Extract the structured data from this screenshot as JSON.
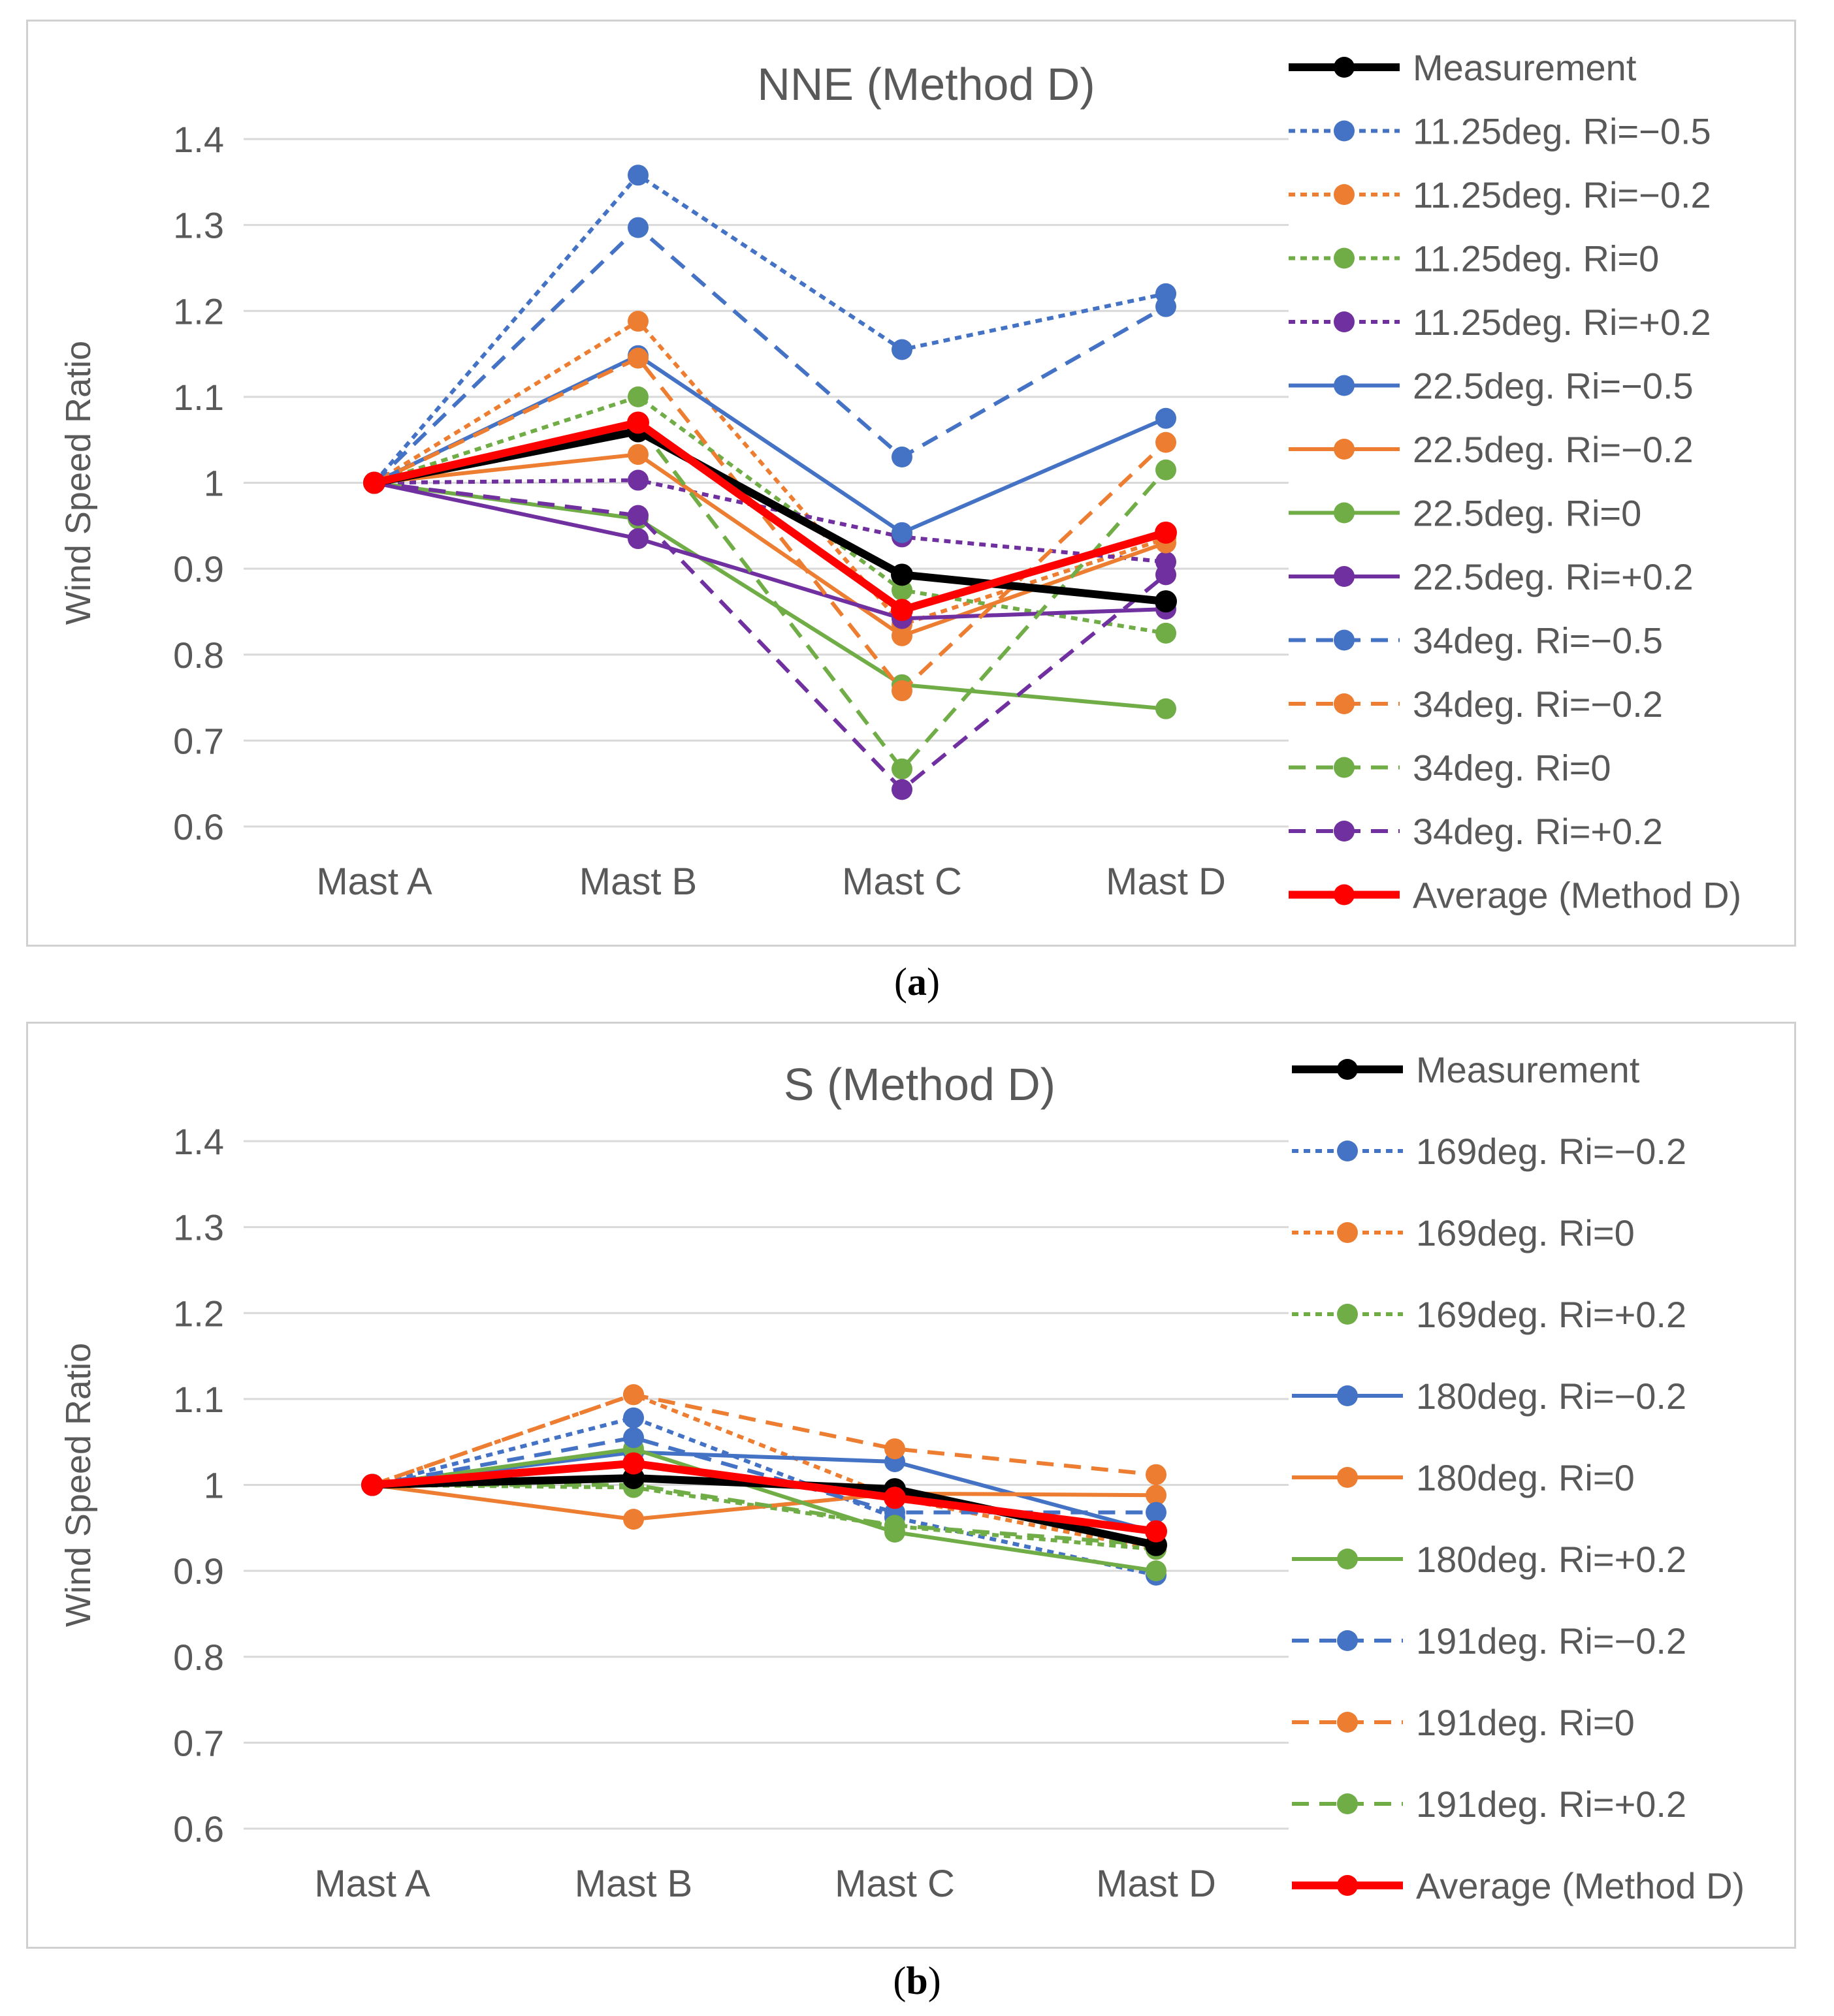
{
  "captions": [
    "a",
    "b"
  ],
  "chart_data": [
    {
      "type": "line",
      "title": "NNE (Method D)",
      "ylabel": "Wind Speed Ratio",
      "xlabel": "",
      "categories": [
        "Mast A",
        "Mast B",
        "Mast C",
        "Mast D"
      ],
      "ylim": [
        0.6,
        1.4
      ],
      "yticks": [
        0.6,
        0.7,
        0.8,
        0.9,
        1,
        1.1,
        1.2,
        1.3,
        1.4
      ],
      "yticklabels": [
        "0.6",
        "0.7",
        "0.8",
        "0.9",
        "1",
        "1.1",
        "1.2",
        "1.3",
        "1.4"
      ],
      "grid": true,
      "legend_position": "right",
      "series": [
        {
          "name": "Measurement",
          "color": "#000000",
          "dash": "solid",
          "bold": true,
          "values": [
            1.0,
            1.06,
            0.893,
            0.862
          ]
        },
        {
          "name": "11.25deg. Ri=−0.5",
          "color": "#4472c4",
          "dash": "dot",
          "bold": false,
          "values": [
            1.0,
            1.358,
            1.155,
            1.22
          ]
        },
        {
          "name": "11.25deg. Ri=−0.2",
          "color": "#ed7d31",
          "dash": "dot",
          "bold": false,
          "values": [
            1.0,
            1.188,
            0.835,
            0.935
          ]
        },
        {
          "name": "11.25deg. Ri=0",
          "color": "#70ad47",
          "dash": "dot",
          "bold": false,
          "values": [
            1.0,
            1.1,
            0.875,
            0.825
          ]
        },
        {
          "name": "11.25deg. Ri=+0.2",
          "color": "#7030a0",
          "dash": "dot",
          "bold": false,
          "values": [
            1.0,
            1.003,
            0.937,
            0.908
          ]
        },
        {
          "name": "22.5deg. Ri=−0.5",
          "color": "#4472c4",
          "dash": "solid",
          "bold": false,
          "values": [
            1.0,
            1.148,
            0.942,
            1.075
          ]
        },
        {
          "name": "22.5deg. Ri=−0.2",
          "color": "#ed7d31",
          "dash": "solid",
          "bold": false,
          "values": [
            1.0,
            1.033,
            0.822,
            0.93
          ]
        },
        {
          "name": "22.5deg. Ri=0",
          "color": "#70ad47",
          "dash": "solid",
          "bold": false,
          "values": [
            1.0,
            0.958,
            0.765,
            0.737
          ]
        },
        {
          "name": "22.5deg. Ri=+0.2",
          "color": "#7030a0",
          "dash": "solid",
          "bold": false,
          "values": [
            1.0,
            0.935,
            0.842,
            0.853
          ]
        },
        {
          "name": "34deg. Ri=−0.5",
          "color": "#4472c4",
          "dash": "dash",
          "bold": false,
          "values": [
            1.0,
            1.297,
            1.03,
            1.205
          ]
        },
        {
          "name": "34deg. Ri=−0.2",
          "color": "#ed7d31",
          "dash": "dash",
          "bold": false,
          "values": [
            1.0,
            1.145,
            0.758,
            1.047
          ]
        },
        {
          "name": "34deg. Ri=0",
          "color": "#70ad47",
          "dash": "dash",
          "bold": false,
          "values": [
            1.0,
            1.068,
            0.667,
            1.015
          ]
        },
        {
          "name": "34deg. Ri=+0.2",
          "color": "#7030a0",
          "dash": "dash",
          "bold": false,
          "values": [
            1.0,
            0.962,
            0.643,
            0.893
          ]
        },
        {
          "name": "Average (Method D)",
          "color": "#ff0000",
          "dash": "solid",
          "bold": true,
          "values": [
            1.0,
            1.07,
            0.852,
            0.942
          ]
        }
      ]
    },
    {
      "type": "line",
      "title": "S (Method D)",
      "ylabel": "Wind Speed Ratio",
      "xlabel": "",
      "categories": [
        "Mast A",
        "Mast B",
        "Mast C",
        "Mast D"
      ],
      "ylim": [
        0.6,
        1.4
      ],
      "yticks": [
        0.6,
        0.7,
        0.8,
        0.9,
        1,
        1.1,
        1.2,
        1.3,
        1.4
      ],
      "yticklabels": [
        "0.6",
        "0.7",
        "0.8",
        "0.9",
        "1",
        "1.1",
        "1.2",
        "1.3",
        "1.4"
      ],
      "grid": true,
      "legend_position": "right",
      "series": [
        {
          "name": "Measurement",
          "color": "#000000",
          "dash": "solid",
          "bold": true,
          "values": [
            1.0,
            1.008,
            0.995,
            0.93
          ]
        },
        {
          "name": "169deg. Ri=−0.2",
          "color": "#4472c4",
          "dash": "dot",
          "bold": false,
          "values": [
            1.0,
            1.078,
            0.962,
            0.895
          ]
        },
        {
          "name": "169deg. Ri=0",
          "color": "#ed7d31",
          "dash": "dot",
          "bold": false,
          "values": [
            1.0,
            1.105,
            0.985,
            0.925
          ]
        },
        {
          "name": "169deg. Ri=+0.2",
          "color": "#70ad47",
          "dash": "dot",
          "bold": false,
          "values": [
            1.0,
            0.997,
            0.952,
            0.925
          ]
        },
        {
          "name": "180deg. Ri=−0.2",
          "color": "#4472c4",
          "dash": "solid",
          "bold": false,
          "values": [
            1.0,
            1.038,
            1.027,
            0.945
          ]
        },
        {
          "name": "180deg. Ri=0",
          "color": "#ed7d31",
          "dash": "solid",
          "bold": false,
          "values": [
            1.0,
            0.96,
            0.99,
            0.988
          ]
        },
        {
          "name": "180deg. Ri=+0.2",
          "color": "#70ad47",
          "dash": "solid",
          "bold": false,
          "values": [
            1.0,
            1.042,
            0.945,
            0.9
          ]
        },
        {
          "name": "191deg. Ri=−0.2",
          "color": "#4472c4",
          "dash": "dash",
          "bold": false,
          "values": [
            1.0,
            1.055,
            0.968,
            0.968
          ]
        },
        {
          "name": "191deg. Ri=0",
          "color": "#ed7d31",
          "dash": "dash",
          "bold": false,
          "values": [
            1.0,
            1.105,
            1.042,
            1.012
          ]
        },
        {
          "name": "191deg. Ri=+0.2",
          "color": "#70ad47",
          "dash": "dash",
          "bold": false,
          "values": [
            1.0,
            1.0,
            0.953,
            0.93
          ]
        },
        {
          "name": "Average (Method D)",
          "color": "#ff0000",
          "dash": "solid",
          "bold": true,
          "values": [
            1.0,
            1.025,
            0.985,
            0.946
          ]
        }
      ]
    }
  ]
}
